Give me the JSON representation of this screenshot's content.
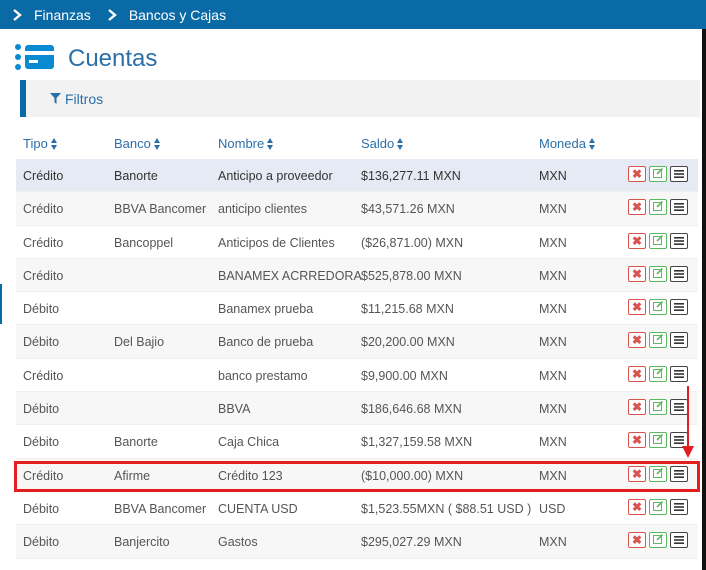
{
  "breadcrumb": {
    "items": [
      "Finanzas",
      "Bancos y Cajas"
    ]
  },
  "page": {
    "title": "Cuentas",
    "filter_label": "Filtros"
  },
  "table": {
    "headers": [
      "Tipo",
      "Banco",
      "Nombre",
      "Saldo",
      "Moneda"
    ],
    "rows": [
      {
        "tipo": "Crédito",
        "banco": "Banorte",
        "nombre": "Anticipo a proveedor",
        "saldo": "$136,277.11 MXN",
        "moneda": "MXN"
      },
      {
        "tipo": "Crédito",
        "banco": "BBVA Bancomer",
        "nombre": "anticipo clientes",
        "saldo": "$43,571.26 MXN",
        "moneda": "MXN"
      },
      {
        "tipo": "Crédito",
        "banco": "Bancoppel",
        "nombre": "Anticipos de Clientes",
        "saldo": "($26,871.00) MXN",
        "moneda": "MXN"
      },
      {
        "tipo": "Crédito",
        "banco": "",
        "nombre": "BANAMEX ACRREDORA",
        "saldo": "$525,878.00 MXN",
        "moneda": "MXN"
      },
      {
        "tipo": "Débito",
        "banco": "",
        "nombre": "Banamex prueba",
        "saldo": "$11,215.68 MXN",
        "moneda": "MXN"
      },
      {
        "tipo": "Débito",
        "banco": "Del Bajio",
        "nombre": "Banco de prueba",
        "saldo": "$20,200.00 MXN",
        "moneda": "MXN"
      },
      {
        "tipo": "Crédito",
        "banco": "",
        "nombre": "banco prestamo",
        "saldo": "$9,900.00 MXN",
        "moneda": "MXN"
      },
      {
        "tipo": "Débito",
        "banco": "",
        "nombre": "BBVA",
        "saldo": "$186,646.68 MXN",
        "moneda": "MXN"
      },
      {
        "tipo": "Débito",
        "banco": "Banorte",
        "nombre": "Caja Chica",
        "saldo": "$1,327,159.58 MXN",
        "moneda": "MXN"
      },
      {
        "tipo": "Crédito",
        "banco": "Afirme",
        "nombre": "Crédito 123",
        "saldo": "($10,000.00) MXN",
        "moneda": "MXN"
      },
      {
        "tipo": "Débito",
        "banco": "BBVA Bancomer",
        "nombre": "CUENTA USD",
        "saldo": "$1,523.55MXN ( $88.51 USD )",
        "moneda": "USD"
      },
      {
        "tipo": "Débito",
        "banco": "Banjercito",
        "nombre": "Gastos",
        "saldo": "$295,027.29 MXN",
        "moneda": "MXN"
      }
    ]
  },
  "colors": {
    "accent": "#0a6aa6",
    "title": "#2c6fa8",
    "delete": "#d9534f",
    "edit": "#5cb85c",
    "annotation": "#e31e1e"
  }
}
